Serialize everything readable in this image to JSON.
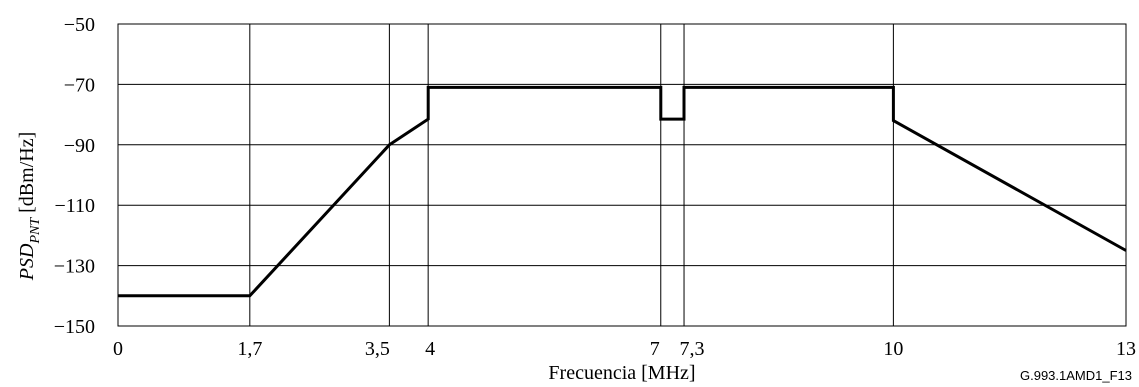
{
  "chart_data": {
    "type": "line",
    "title": "",
    "xlabel": "Frecuencia [MHz]",
    "ylabel": {
      "main": "PSD",
      "subscript": "PNT",
      "unit": " [dBm/Hz]"
    },
    "xlim": [
      0,
      13
    ],
    "ylim": [
      -150,
      -50
    ],
    "x_ticks": [
      0,
      1.7,
      3.5,
      4,
      7,
      7.3,
      10,
      13
    ],
    "x_tick_labels": [
      "0",
      "1,7",
      "3,5",
      "4",
      "7",
      "7,3",
      "10",
      "13"
    ],
    "y_ticks": [
      -150,
      -130,
      -110,
      -90,
      -70,
      -50
    ],
    "y_tick_labels": [
      "−150",
      "−130",
      "−110",
      "−90",
      "−70",
      "−50"
    ],
    "grid": true,
    "series": [
      {
        "x": [
          0,
          1.7,
          3.5,
          4,
          4,
          7,
          7,
          7.3,
          7.3,
          10,
          10,
          13
        ],
        "y": [
          -140,
          -140,
          -90,
          -81.5,
          -71,
          -71,
          -81.5,
          -81.5,
          -71,
          -71,
          -82,
          -125
        ]
      }
    ],
    "figure_id": "G.993.1AMD1_F13"
  }
}
